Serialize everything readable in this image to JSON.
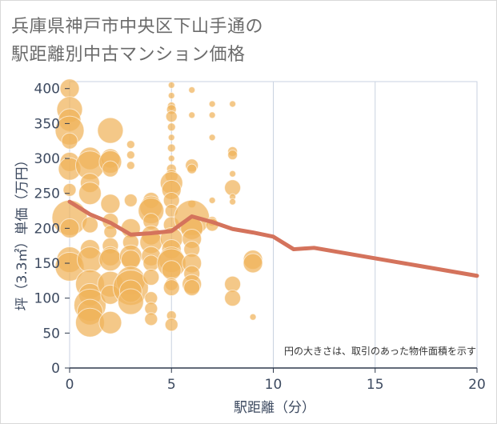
{
  "title_lines": [
    "兵庫県神戸市中央区下山手通の",
    "駅距離別中古マンション価格"
  ],
  "chart_data": {
    "type": "scatter",
    "xlabel": "駅距離（分）",
    "ylabel": "坪（3.3㎡）単価（万円）",
    "xlim": [
      0,
      20
    ],
    "ylim": [
      0,
      410
    ],
    "x_ticks": [
      0,
      5,
      10,
      15,
      20
    ],
    "y_ticks": [
      0,
      50,
      100,
      150,
      200,
      250,
      300,
      350,
      400
    ],
    "note": "円の大きさは、取引のあった物件面積を示す",
    "bubble_color": "#f0b35a",
    "line_color": "#d4735c",
    "bubbles": [
      [
        0,
        400,
        12
      ],
      [
        0,
        370,
        16
      ],
      [
        0,
        355,
        14
      ],
      [
        0,
        340,
        18
      ],
      [
        0,
        325,
        10
      ],
      [
        0,
        295,
        12
      ],
      [
        0,
        285,
        14
      ],
      [
        0,
        255,
        8
      ],
      [
        0,
        215,
        22
      ],
      [
        0,
        200,
        12
      ],
      [
        0,
        155,
        16
      ],
      [
        0,
        145,
        18
      ],
      [
        1,
        300,
        14
      ],
      [
        1,
        290,
        18
      ],
      [
        1,
        265,
        12
      ],
      [
        1,
        250,
        14
      ],
      [
        1,
        205,
        10
      ],
      [
        1,
        170,
        12
      ],
      [
        1,
        155,
        16
      ],
      [
        1,
        120,
        18
      ],
      [
        1,
        105,
        14
      ],
      [
        1,
        90,
        20
      ],
      [
        1,
        80,
        16
      ],
      [
        1,
        65,
        18
      ],
      [
        2,
        340,
        16
      ],
      [
        2,
        300,
        12
      ],
      [
        2,
        295,
        14
      ],
      [
        2,
        285,
        10
      ],
      [
        2,
        235,
        12
      ],
      [
        2,
        210,
        10
      ],
      [
        2,
        195,
        8
      ],
      [
        2,
        175,
        10
      ],
      [
        2,
        160,
        12
      ],
      [
        2,
        155,
        14
      ],
      [
        2,
        120,
        16
      ],
      [
        2,
        105,
        12
      ],
      [
        2,
        65,
        14
      ],
      [
        3,
        320,
        5
      ],
      [
        3,
        305,
        5
      ],
      [
        3,
        290,
        5
      ],
      [
        3,
        240,
        8
      ],
      [
        3,
        200,
        12
      ],
      [
        3,
        180,
        10
      ],
      [
        3,
        160,
        14
      ],
      [
        3,
        155,
        12
      ],
      [
        3,
        125,
        18
      ],
      [
        3,
        115,
        22
      ],
      [
        3,
        110,
        14
      ],
      [
        3,
        95,
        16
      ],
      [
        4,
        240,
        10
      ],
      [
        4,
        230,
        14
      ],
      [
        4,
        225,
        16
      ],
      [
        4,
        210,
        10
      ],
      [
        4,
        190,
        12
      ],
      [
        4,
        180,
        14
      ],
      [
        4,
        160,
        12
      ],
      [
        4,
        150,
        10
      ],
      [
        4,
        130,
        10
      ],
      [
        4,
        100,
        8
      ],
      [
        4,
        85,
        8
      ],
      [
        4,
        70,
        8
      ],
      [
        5,
        405,
        4
      ],
      [
        5,
        390,
        4
      ],
      [
        5,
        375,
        5
      ],
      [
        5,
        370,
        6
      ],
      [
        5,
        360,
        7
      ],
      [
        5,
        345,
        5
      ],
      [
        5,
        330,
        4
      ],
      [
        5,
        315,
        5
      ],
      [
        5,
        300,
        4
      ],
      [
        5,
        285,
        6
      ],
      [
        5,
        275,
        8
      ],
      [
        5,
        265,
        14
      ],
      [
        5,
        255,
        12
      ],
      [
        5,
        240,
        10
      ],
      [
        5,
        225,
        8
      ],
      [
        5,
        205,
        10
      ],
      [
        5,
        185,
        14
      ],
      [
        5,
        170,
        12
      ],
      [
        5,
        155,
        16
      ],
      [
        5,
        150,
        18
      ],
      [
        5,
        140,
        12
      ],
      [
        5,
        120,
        8
      ],
      [
        5,
        115,
        10
      ],
      [
        5,
        75,
        6
      ],
      [
        5,
        62,
        8
      ],
      [
        6,
        398,
        4
      ],
      [
        6,
        362,
        4
      ],
      [
        6,
        290,
        8
      ],
      [
        6,
        285,
        6
      ],
      [
        6,
        235,
        5
      ],
      [
        6,
        215,
        22
      ],
      [
        6,
        200,
        14
      ],
      [
        6,
        185,
        12
      ],
      [
        6,
        170,
        10
      ],
      [
        6,
        150,
        12
      ],
      [
        6,
        135,
        10
      ],
      [
        6,
        120,
        12
      ],
      [
        6,
        115,
        10
      ],
      [
        7,
        378,
        4
      ],
      [
        7,
        362,
        4
      ],
      [
        7,
        330,
        4
      ],
      [
        7,
        240,
        4
      ],
      [
        7,
        210,
        6
      ],
      [
        7,
        205,
        8
      ],
      [
        8,
        378,
        4
      ],
      [
        8,
        310,
        6
      ],
      [
        8,
        305,
        6
      ],
      [
        8,
        278,
        4
      ],
      [
        8,
        258,
        10
      ],
      [
        8,
        245,
        4
      ],
      [
        8,
        238,
        4
      ],
      [
        8,
        120,
        10
      ],
      [
        8,
        100,
        10
      ],
      [
        9,
        155,
        12
      ],
      [
        9,
        150,
        12
      ],
      [
        9,
        73,
        4
      ]
    ],
    "trend": {
      "x": [
        0,
        1,
        2,
        3,
        4,
        5,
        6,
        7,
        8,
        9,
        10,
        11,
        12,
        13,
        14,
        15,
        16,
        17,
        18,
        19,
        20
      ],
      "y": [
        238,
        220,
        208,
        191,
        193,
        196,
        217,
        209,
        199,
        194,
        188,
        170,
        172,
        167,
        162,
        157,
        152,
        147,
        142,
        137,
        132
      ]
    }
  }
}
